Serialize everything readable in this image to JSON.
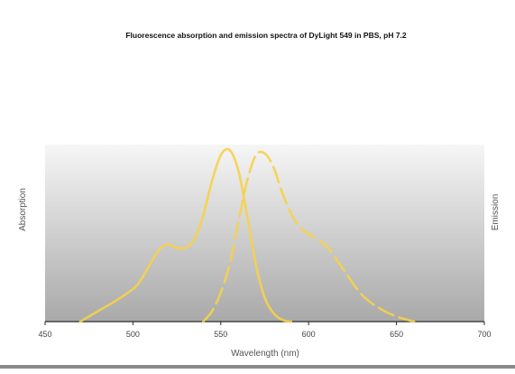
{
  "chart_data": {
    "type": "line",
    "title": "Fluorescence absorption and emission spectra of DyLight 549 in PBS, pH 7.2",
    "xlabel": "Wavelength (nm)",
    "ylabel_left": "Absorption",
    "ylabel_right": "Emission",
    "xlim": [
      450,
      700
    ],
    "ylim": [
      0,
      1
    ],
    "xticks": [
      450,
      500,
      550,
      600,
      650,
      700
    ],
    "grid": false,
    "legend": "none",
    "series": [
      {
        "name": "",
        "style": "solid",
        "color": "#f5d24a",
        "x": [
          470,
          480,
          490,
          500,
          505,
          510,
          515,
          520,
          525,
          530,
          535,
          540,
          545,
          550,
          555,
          560,
          565,
          570,
          575,
          580,
          585,
          590
        ],
        "y": [
          0.0,
          0.06,
          0.12,
          0.19,
          0.25,
          0.34,
          0.42,
          0.45,
          0.43,
          0.43,
          0.48,
          0.62,
          0.82,
          0.97,
          1.0,
          0.88,
          0.62,
          0.33,
          0.14,
          0.05,
          0.01,
          0.0
        ]
      },
      {
        "name": "",
        "style": "dashed",
        "color": "#f5d24a",
        "x": [
          540,
          545,
          550,
          555,
          560,
          565,
          570,
          575,
          580,
          585,
          590,
          595,
          600,
          610,
          620,
          630,
          640,
          650,
          660
        ],
        "y": [
          0.0,
          0.06,
          0.17,
          0.33,
          0.58,
          0.82,
          0.97,
          0.98,
          0.9,
          0.75,
          0.63,
          0.55,
          0.51,
          0.44,
          0.3,
          0.16,
          0.08,
          0.03,
          0.0
        ]
      }
    ]
  }
}
